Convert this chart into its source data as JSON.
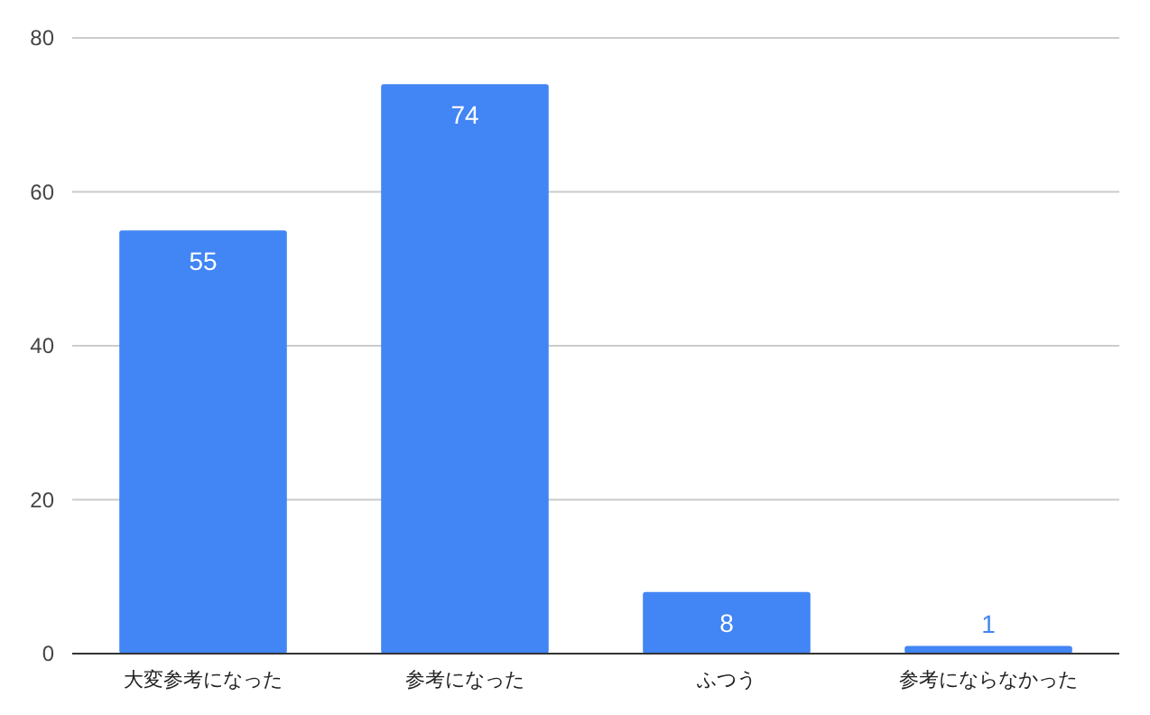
{
  "chart_data": {
    "type": "bar",
    "categories": [
      "大変参考になった",
      "参考になった",
      "ふつう",
      "参考にならなかった"
    ],
    "values": [
      55,
      74,
      8,
      1
    ],
    "color": "#4285f4",
    "ylim": [
      0,
      80
    ],
    "yticks": [
      0,
      20,
      40,
      60,
      80
    ],
    "grid": "y",
    "data_labels": true
  }
}
